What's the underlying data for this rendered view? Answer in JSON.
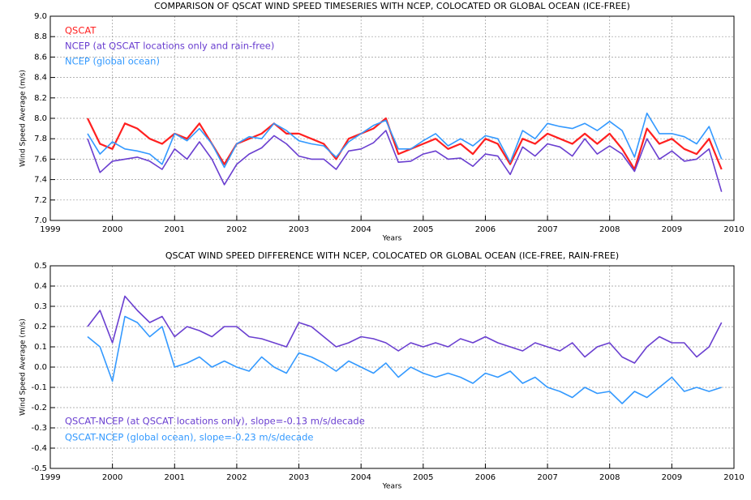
{
  "chart_data": [
    {
      "type": "line",
      "title": "COMPARISON OF QSCAT WIND SPEED TIMESERIES WITH NCEP, COLOCATED OR GLOBAL OCEAN (ICE-FREE)",
      "x_label": "Years",
      "y_label": "Wind Speed Average (m/s)",
      "xlim": [
        1999,
        2010
      ],
      "xticks": [
        1999,
        2000,
        2001,
        2002,
        2003,
        2004,
        2005,
        2006,
        2007,
        2008,
        2009,
        2010
      ],
      "ylim": [
        7.0,
        9.0
      ],
      "yticks": [
        {
          "value": 7.0,
          "label": "7.0"
        },
        7.2,
        7.4,
        7.6,
        7.8,
        {
          "value": 8.0,
          "label": "8.0"
        },
        8.2,
        8.4,
        8.6,
        8.8,
        {
          "value": 9.0,
          "label": "9.0"
        }
      ],
      "grid": true,
      "legend": "upper left",
      "x": [
        1999.6,
        1999.8,
        2000.0,
        2000.2,
        2000.4,
        2000.6,
        2000.8,
        2001.0,
        2001.2,
        2001.4,
        2001.6,
        2001.8,
        2002.0,
        2002.2,
        2002.4,
        2002.6,
        2002.8,
        2003.0,
        2003.2,
        2003.4,
        2003.6,
        2003.8,
        2004.0,
        2004.2,
        2004.4,
        2004.6,
        2004.8,
        2005.0,
        2005.2,
        2005.4,
        2005.6,
        2005.8,
        2006.0,
        2006.2,
        2006.4,
        2006.6,
        2006.8,
        2007.0,
        2007.2,
        2007.4,
        2007.6,
        2007.8,
        2008.0,
        2008.2,
        2008.4,
        2008.6,
        2008.8,
        2009.0,
        2009.2,
        2009.4,
        2009.6,
        2009.8
      ],
      "series": [
        {
          "name": "QSCAT",
          "color": "#ff2020",
          "values": [
            8.0,
            7.75,
            7.7,
            7.95,
            7.9,
            7.8,
            7.75,
            7.85,
            7.8,
            7.95,
            7.75,
            7.55,
            7.75,
            7.8,
            7.85,
            7.95,
            7.85,
            7.85,
            7.8,
            7.75,
            7.6,
            7.8,
            7.85,
            7.9,
            8.0,
            7.65,
            7.7,
            7.75,
            7.8,
            7.7,
            7.75,
            7.65,
            7.8,
            7.75,
            7.55,
            7.8,
            7.75,
            7.85,
            7.8,
            7.75,
            7.85,
            7.75,
            7.85,
            7.7,
            7.5,
            7.9,
            7.75,
            7.8,
            7.7,
            7.65,
            7.8,
            7.5
          ]
        },
        {
          "name": "NCEP (at QSCAT locations only and rain-free)",
          "color": "#6a3fd0",
          "values": [
            7.8,
            7.47,
            7.58,
            7.6,
            7.62,
            7.58,
            7.5,
            7.7,
            7.6,
            7.77,
            7.6,
            7.35,
            7.55,
            7.65,
            7.71,
            7.83,
            7.75,
            7.63,
            7.6,
            7.6,
            7.5,
            7.68,
            7.7,
            7.76,
            7.88,
            7.57,
            7.58,
            7.65,
            7.68,
            7.6,
            7.61,
            7.53,
            7.65,
            7.63,
            7.45,
            7.72,
            7.63,
            7.75,
            7.72,
            7.63,
            7.8,
            7.65,
            7.73,
            7.65,
            7.48,
            7.8,
            7.6,
            7.68,
            7.58,
            7.6,
            7.7,
            7.28
          ]
        },
        {
          "name": "NCEP (global ocean)",
          "color": "#3399ff",
          "values": [
            7.85,
            7.65,
            7.77,
            7.7,
            7.68,
            7.65,
            7.55,
            7.85,
            7.78,
            7.9,
            7.75,
            7.52,
            7.75,
            7.82,
            7.8,
            7.95,
            7.88,
            7.78,
            7.75,
            7.73,
            7.62,
            7.77,
            7.85,
            7.93,
            7.98,
            7.7,
            7.7,
            7.78,
            7.85,
            7.73,
            7.8,
            7.73,
            7.83,
            7.8,
            7.57,
            7.88,
            7.8,
            7.95,
            7.92,
            7.9,
            7.95,
            7.88,
            7.97,
            7.88,
            7.62,
            8.05,
            7.85,
            7.85,
            7.82,
            7.75,
            7.92,
            7.6
          ]
        }
      ]
    },
    {
      "type": "line",
      "title": "QSCAT WIND SPEED DIFFERENCE WITH NCEP, COLOCATED OR GLOBAL OCEAN (ICE-FREE, RAIN-FREE)",
      "x_label": "Years",
      "y_label": "Wind Speed Average (m/s)",
      "xlim": [
        1999,
        2010
      ],
      "xticks": [
        1999,
        2000,
        2001,
        2002,
        2003,
        2004,
        2005,
        2006,
        2007,
        2008,
        2009,
        2010
      ],
      "ylim": [
        -0.5,
        0.5
      ],
      "yticks": [
        -0.5,
        -0.4,
        -0.3,
        -0.2,
        -0.1,
        {
          "value": 0.0,
          "label": "0.0"
        },
        0.1,
        0.2,
        0.3,
        0.4,
        0.5
      ],
      "grid": true,
      "legend": "lower left",
      "x": [
        1999.6,
        1999.8,
        2000.0,
        2000.2,
        2000.4,
        2000.6,
        2000.8,
        2001.0,
        2001.2,
        2001.4,
        2001.6,
        2001.8,
        2002.0,
        2002.2,
        2002.4,
        2002.6,
        2002.8,
        2003.0,
        2003.2,
        2003.4,
        2003.6,
        2003.8,
        2004.0,
        2004.2,
        2004.4,
        2004.6,
        2004.8,
        2005.0,
        2005.2,
        2005.4,
        2005.6,
        2005.8,
        2006.0,
        2006.2,
        2006.4,
        2006.6,
        2006.8,
        2007.0,
        2007.2,
        2007.4,
        2007.6,
        2007.8,
        2008.0,
        2008.2,
        2008.4,
        2008.6,
        2008.8,
        2009.0,
        2009.2,
        2009.4,
        2009.6,
        2009.8
      ],
      "series": [
        {
          "name": "QSCAT-NCEP (at QSCAT locations only), slope=-0.13 m/s/decade",
          "color": "#6a3fd0",
          "values": [
            0.2,
            0.28,
            0.12,
            0.35,
            0.28,
            0.22,
            0.25,
            0.15,
            0.2,
            0.18,
            0.15,
            0.2,
            0.2,
            0.15,
            0.14,
            0.12,
            0.1,
            0.22,
            0.2,
            0.15,
            0.1,
            0.12,
            0.15,
            0.14,
            0.12,
            0.08,
            0.12,
            0.1,
            0.12,
            0.1,
            0.14,
            0.12,
            0.15,
            0.12,
            0.1,
            0.08,
            0.12,
            0.1,
            0.08,
            0.12,
            0.05,
            0.1,
            0.12,
            0.05,
            0.02,
            0.1,
            0.15,
            0.12,
            0.12,
            0.05,
            0.1,
            0.22
          ]
        },
        {
          "name": "QSCAT-NCEP (global ocean), slope=-0.23 m/s/decade",
          "color": "#3399ff",
          "values": [
            0.15,
            0.1,
            -0.07,
            0.25,
            0.22,
            0.15,
            0.2,
            0.0,
            0.02,
            0.05,
            0.0,
            0.03,
            0.0,
            -0.02,
            0.05,
            0.0,
            -0.03,
            0.07,
            0.05,
            0.02,
            -0.02,
            0.03,
            0.0,
            -0.03,
            0.02,
            -0.05,
            0.0,
            -0.03,
            -0.05,
            -0.03,
            -0.05,
            -0.08,
            -0.03,
            -0.05,
            -0.02,
            -0.08,
            -0.05,
            -0.1,
            -0.12,
            -0.15,
            -0.1,
            -0.13,
            -0.12,
            -0.18,
            -0.12,
            -0.15,
            -0.1,
            -0.05,
            -0.12,
            -0.1,
            -0.12,
            -0.1
          ]
        }
      ]
    }
  ]
}
